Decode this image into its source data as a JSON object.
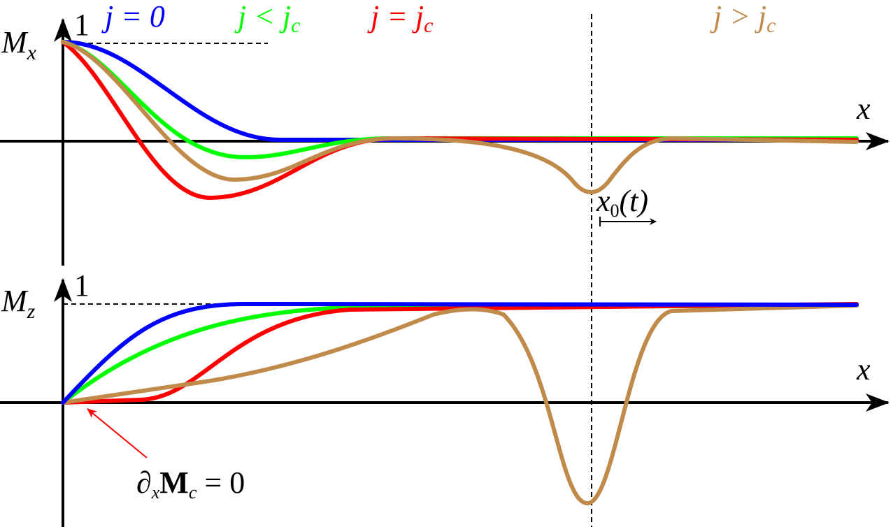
{
  "top_panel": {
    "y_label": {
      "base": "M",
      "sub": "x"
    },
    "unit_tick": "1",
    "x_label": "x",
    "marker": {
      "base": "x",
      "sub": "0",
      "rest": "(t)"
    }
  },
  "bottom_panel": {
    "y_label": {
      "base": "M",
      "sub": "z"
    },
    "unit_tick": "1",
    "x_label": "x"
  },
  "legend": [
    {
      "text": "j = 0",
      "color": "#0000ff"
    },
    {
      "text": "j < j",
      "sub": "c",
      "color": "#00ff00"
    },
    {
      "text": "j = j",
      "sub": "c",
      "color": "#ff0000"
    },
    {
      "text": "j > j",
      "sub": "c",
      "color": "#c08a4a"
    }
  ],
  "annotation": {
    "parts": [
      "∂",
      "x",
      "M",
      "c",
      " = 0"
    ]
  }
}
